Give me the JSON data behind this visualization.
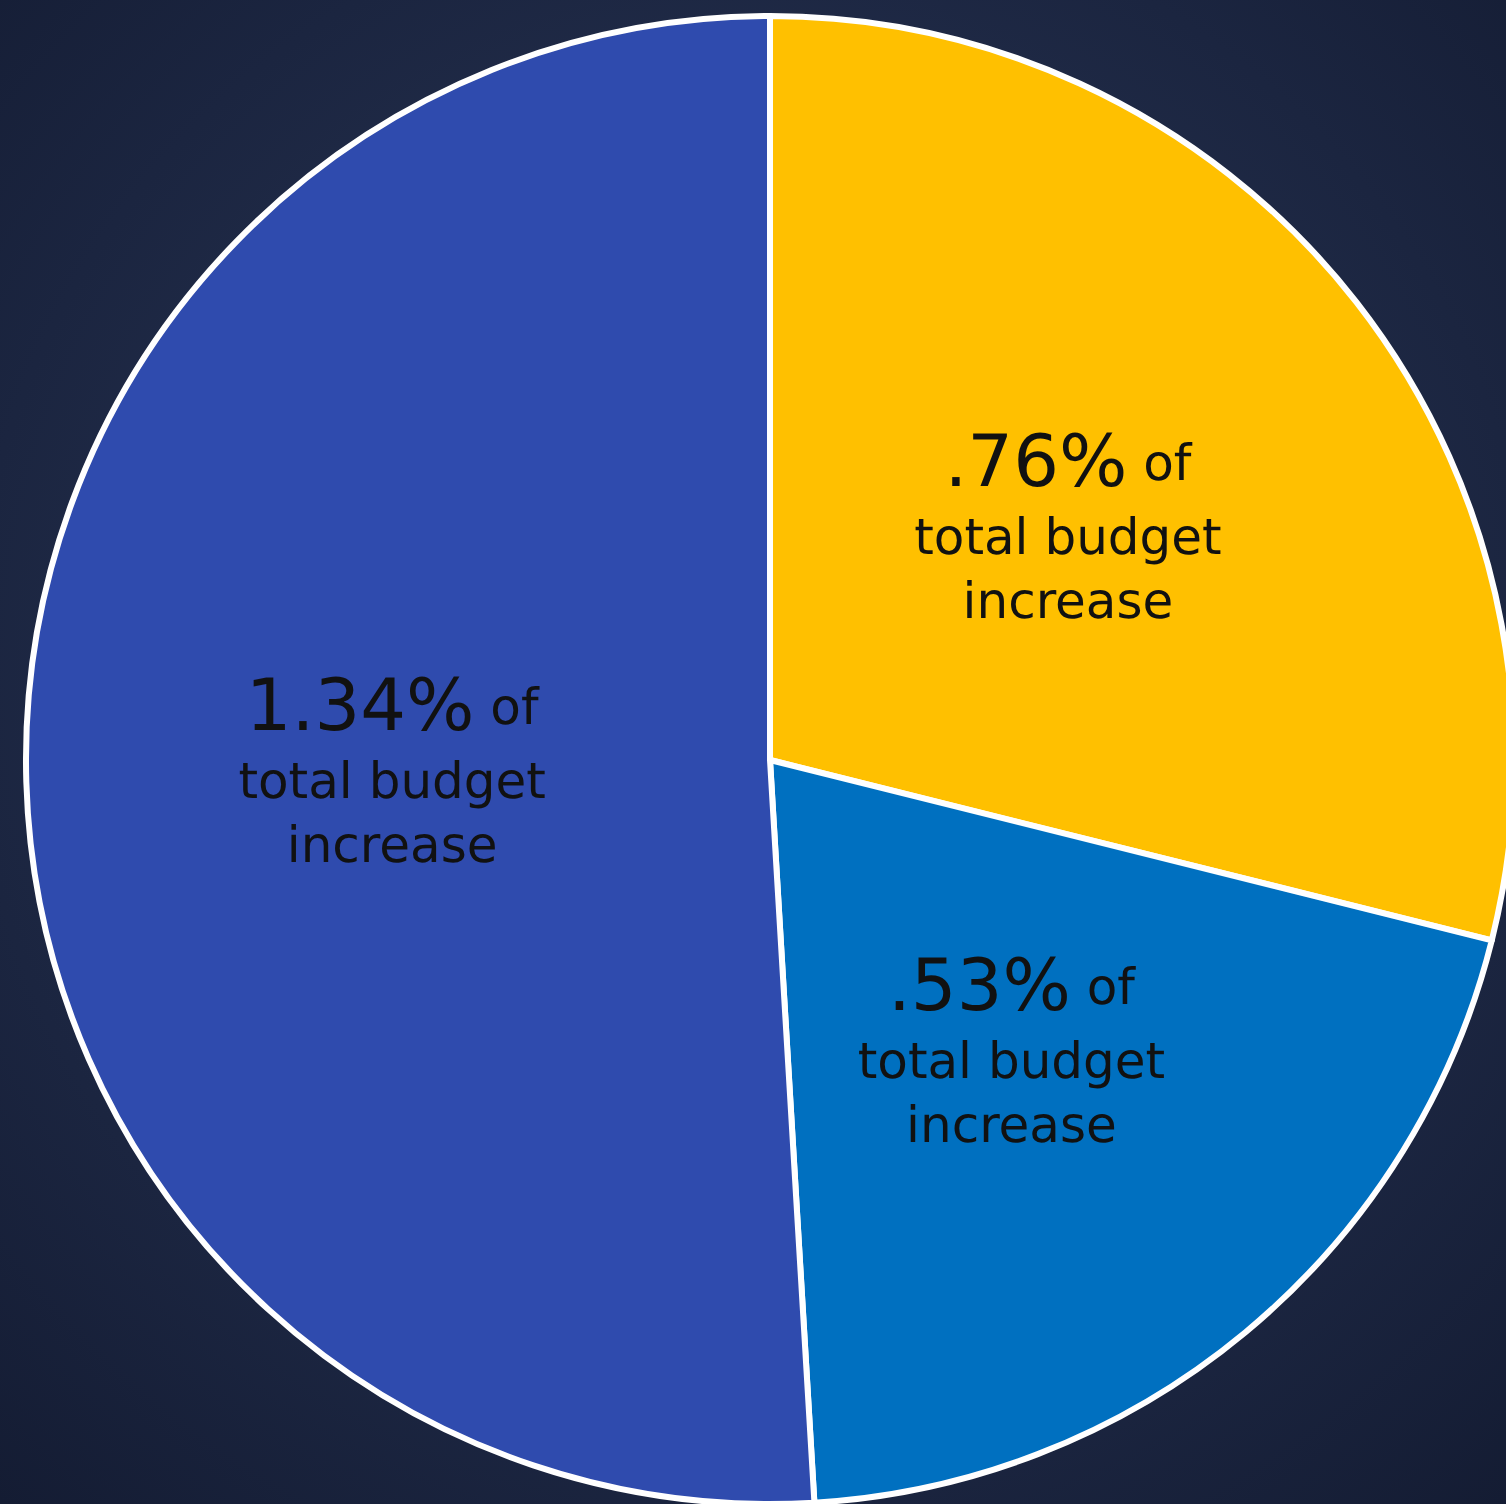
{
  "chart_data": {
    "type": "pie",
    "categories": [
      null,
      null,
      null
    ],
    "values": [
      0.76,
      0.53,
      1.34
    ],
    "colors": [
      "#ffc000",
      "#0070c0",
      "#2f4bae"
    ],
    "value_labels": [
      ".76% of\ntotal budget\nincrease",
      ".53% of\ntotal budget\nincrease",
      "1.34% of\ntotal budget\nincrease"
    ]
  }
}
